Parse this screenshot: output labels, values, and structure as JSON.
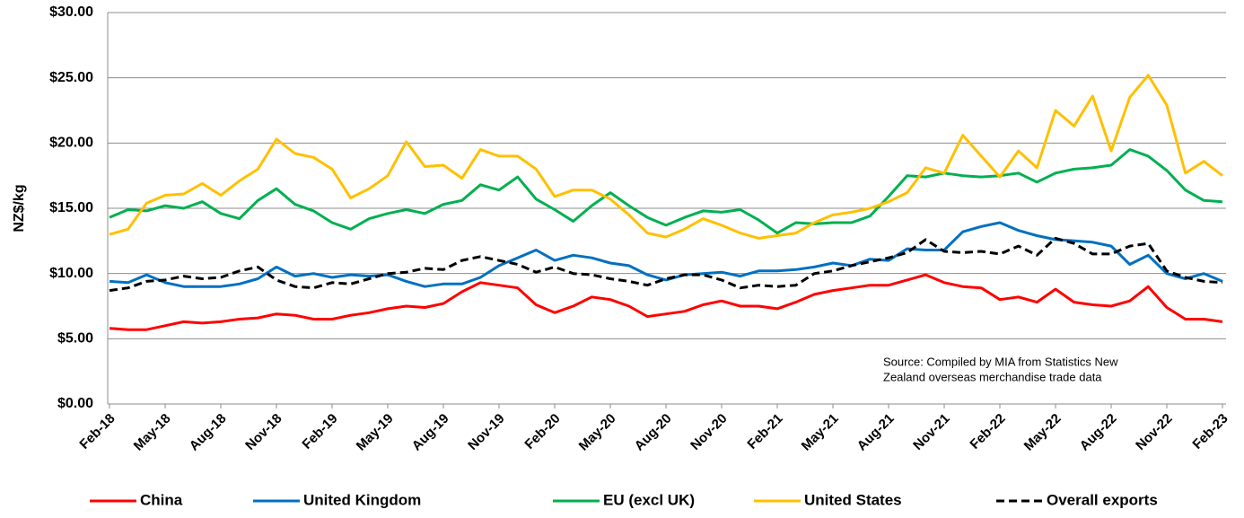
{
  "chart_data": {
    "type": "line",
    "ylabel": "NZ$/kg",
    "annotation": [
      "Source: Compiled by MIA from Statistics New",
      "Zealand overseas merchandise trade data"
    ],
    "categories": [
      "Feb-18",
      null,
      null,
      "May-18",
      null,
      null,
      "Aug-18",
      null,
      null,
      "Nov-18",
      null,
      null,
      "Feb-19",
      null,
      null,
      "May-19",
      null,
      null,
      "Aug-19",
      null,
      null,
      "Nov-19",
      null,
      null,
      "Feb-20",
      null,
      null,
      "May-20",
      null,
      null,
      "Aug-20",
      null,
      null,
      "Nov-20",
      null,
      null,
      "Feb-21",
      null,
      null,
      "May-21",
      null,
      null,
      "Aug-21",
      null,
      null,
      "Nov-21",
      null,
      null,
      "Feb-22",
      null,
      null,
      "May-22",
      null,
      null,
      "Aug-22",
      null,
      null,
      "Nov-22",
      null,
      null,
      "Feb-23"
    ],
    "series": [
      {
        "name": "China",
        "color": "#ff0000",
        "values": [
          5.8,
          5.7,
          5.7,
          6.0,
          6.3,
          6.2,
          6.3,
          6.5,
          6.6,
          6.9,
          6.8,
          6.5,
          6.5,
          6.8,
          7.0,
          7.3,
          7.5,
          7.4,
          7.7,
          8.6,
          9.3,
          9.1,
          8.9,
          7.6,
          7.0,
          7.5,
          8.2,
          8.0,
          7.5,
          6.7,
          6.9,
          7.1,
          7.6,
          7.9,
          7.5,
          7.5,
          7.3,
          7.8,
          8.4,
          8.7,
          8.9,
          9.1,
          9.1,
          9.5,
          9.9,
          9.3,
          9.0,
          8.9,
          8.0,
          8.2,
          7.8,
          8.8,
          7.8,
          7.6,
          7.5,
          7.9,
          9.0,
          7.4,
          6.5,
          6.5,
          6.3
        ]
      },
      {
        "name": "United Kingdom",
        "color": "#0070c0",
        "values": [
          9.4,
          9.3,
          9.9,
          9.3,
          9.0,
          9.0,
          9.0,
          9.2,
          9.6,
          10.5,
          9.8,
          10.0,
          9.7,
          9.9,
          9.8,
          9.9,
          9.4,
          9.0,
          9.2,
          9.2,
          9.7,
          10.6,
          11.2,
          11.8,
          11.0,
          11.4,
          11.2,
          10.8,
          10.6,
          9.9,
          9.5,
          9.9,
          10.0,
          10.1,
          9.8,
          10.2,
          10.2,
          10.3,
          10.5,
          10.8,
          10.6,
          11.1,
          11.0,
          11.9,
          11.8,
          11.8,
          13.2,
          13.6,
          13.9,
          13.3,
          12.9,
          12.6,
          12.5,
          12.4,
          12.1,
          10.7,
          11.4,
          10.0,
          9.6,
          10.0,
          9.4
        ]
      },
      {
        "name": "EU (excl UK)",
        "color": "#00b050",
        "values": [
          14.3,
          14.9,
          14.8,
          15.2,
          15.0,
          15.5,
          14.6,
          14.2,
          15.6,
          16.5,
          15.3,
          14.8,
          13.9,
          13.4,
          14.2,
          14.6,
          14.9,
          14.6,
          15.3,
          15.6,
          16.8,
          16.4,
          17.4,
          15.7,
          14.9,
          14.0,
          15.2,
          16.2,
          15.2,
          14.3,
          13.7,
          14.3,
          14.8,
          14.7,
          14.9,
          14.1,
          13.1,
          13.9,
          13.8,
          13.9,
          13.9,
          14.4,
          15.9,
          17.5,
          17.4,
          17.7,
          17.5,
          17.4,
          17.5,
          17.7,
          17.0,
          17.7,
          18.0,
          18.1,
          18.3,
          19.5,
          19.0,
          17.9,
          16.4,
          15.6,
          15.5
        ]
      },
      {
        "name": "United States",
        "color": "#ffc000",
        "values": [
          13.0,
          13.4,
          15.4,
          16.0,
          16.1,
          16.9,
          16.0,
          17.1,
          18.0,
          20.3,
          19.2,
          18.9,
          18.0,
          15.8,
          16.5,
          17.5,
          20.1,
          18.2,
          18.3,
          17.3,
          19.5,
          19.0,
          19.0,
          18.0,
          15.9,
          16.4,
          16.4,
          15.7,
          14.5,
          13.1,
          12.8,
          13.4,
          14.2,
          13.7,
          13.1,
          12.7,
          12.9,
          13.1,
          13.9,
          14.5,
          14.7,
          15.0,
          15.5,
          16.2,
          18.1,
          17.7,
          20.6,
          19.0,
          17.4,
          19.4,
          18.1,
          22.5,
          21.3,
          23.6,
          19.4,
          23.5,
          25.2,
          22.9,
          17.7,
          18.6,
          17.5
        ]
      },
      {
        "name": "Overall exports",
        "color": "#000000",
        "dashed": true,
        "values": [
          8.7,
          8.9,
          9.4,
          9.5,
          9.8,
          9.6,
          9.7,
          10.2,
          10.5,
          9.5,
          9.0,
          8.9,
          9.3,
          9.2,
          9.6,
          10.0,
          10.1,
          10.4,
          10.3,
          11.0,
          11.3,
          11.0,
          10.7,
          10.1,
          10.5,
          10.0,
          9.9,
          9.6,
          9.4,
          9.1,
          9.6,
          9.9,
          9.9,
          9.5,
          8.9,
          9.1,
          9.0,
          9.1,
          10.0,
          10.2,
          10.6,
          10.9,
          11.2,
          11.6,
          12.6,
          11.7,
          11.6,
          11.7,
          11.5,
          12.1,
          11.4,
          12.7,
          12.3,
          11.5,
          11.5,
          12.1,
          12.3,
          10.2,
          9.7,
          9.4,
          9.3
        ]
      }
    ],
    "ylim": [
      0,
      30
    ],
    "yticks": [
      {
        "value": 0,
        "label": "$0.00"
      },
      {
        "value": 5,
        "label": "$5.00"
      },
      {
        "value": 10,
        "label": "$10.00"
      },
      {
        "value": 15,
        "label": "$15.00"
      },
      {
        "value": 20,
        "label": "$20.00"
      },
      {
        "value": 25,
        "label": "$25.00"
      },
      {
        "value": 30,
        "label": "$30.00"
      }
    ],
    "grid": true,
    "legend": "bottom"
  }
}
